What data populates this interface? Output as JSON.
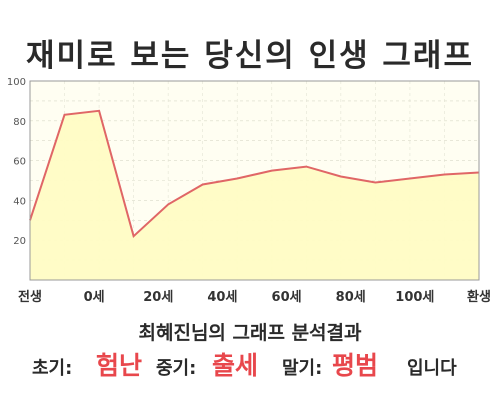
{
  "title": "재미로 보는 당신의 인생 그래프",
  "summary": "최혜진님의 그래프 분석결과",
  "result": {
    "early_label": "초기:",
    "early_value": "험난",
    "mid_label": "중기:",
    "mid_value": "출세",
    "late_label": "말기:",
    "late_value": "평범",
    "suffix": "입니다"
  },
  "colors": {
    "line": "#e06666",
    "fill": "#fffcc4",
    "plot_bg": "#fffef2",
    "highlight": "#e8474c"
  },
  "chart_data": {
    "type": "area",
    "x": [
      0,
      1,
      2,
      3,
      4,
      5,
      6,
      7,
      8,
      9,
      10,
      11,
      12,
      13
    ],
    "values": [
      30,
      83,
      85,
      22,
      38,
      48,
      51,
      55,
      57,
      52,
      49,
      51,
      53,
      54
    ],
    "xticks": [
      "전생",
      "0세",
      "20세",
      "40세",
      "60세",
      "80세",
      "100세",
      "환생"
    ],
    "yticks": [
      "20",
      "40",
      "60",
      "80",
      "100"
    ],
    "ylim": [
      0,
      100
    ],
    "grid": true
  }
}
